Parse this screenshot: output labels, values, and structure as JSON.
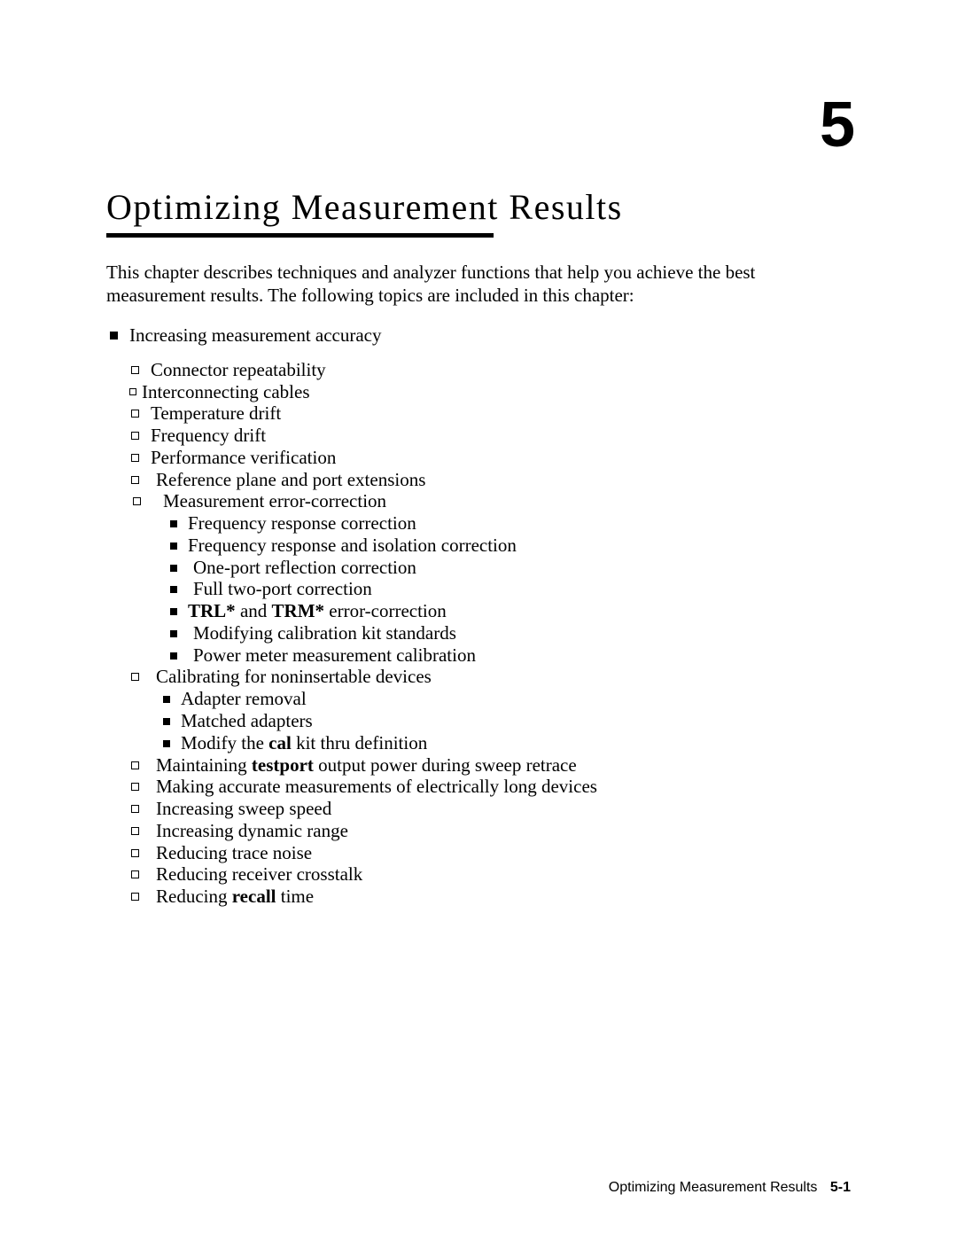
{
  "chapter_number": "5",
  "chapter_title": "Optimizing Measurement Results",
  "intro": "This chapter describes techniques and analyzer functions that help you achieve the best measurement results. The following topics are included in this chapter:",
  "l1_item": "Increasing measurement accuracy",
  "l2": {
    "a": "Connector repeatability",
    "b": "Interconnecting  cables",
    "c": "Temperature  drift",
    "d": "Frequency  drift",
    "e": "Performance  verification",
    "f": "Reference plane and port extensions",
    "g": "Measurement   error-correction",
    "h": "Calibrating  for  noninsertable  devices",
    "i_pre": "Maintaining ",
    "i_bold": "testport",
    "i_post": " output power during sweep retrace",
    "j": "Making  accurate  measurements  of  electrically  long  devices",
    "k": "Increasing sweep speed",
    "l": "Increasing dynamic range",
    "m": "Reducing  trace  noise",
    "n": "Reducing  receiver  crosstalk",
    "o_pre": "Reducing ",
    "o_bold": "recall",
    "o_post": " time"
  },
  "l3a": {
    "a": "Frequency response correction",
    "b": "Frequency response and isolation correction",
    "c": "One-port  reflection  correction",
    "d": "Full  two-port  correction",
    "e_bold1": "TRL*",
    "e_mid": " and ",
    "e_bold2": "TRM*",
    "e_post": " error-correction",
    "f": "Modifying  calibration  kit  standards",
    "g": "Power meter measurement calibration"
  },
  "l3b": {
    "a": "Adapter removal",
    "b": "Matched adapters",
    "c_pre": "Modify the ",
    "c_bold": "cal",
    "c_post": " kit thru definition"
  },
  "footer_text": "Optimizing  Measurement  Results",
  "footer_page": "5-1"
}
